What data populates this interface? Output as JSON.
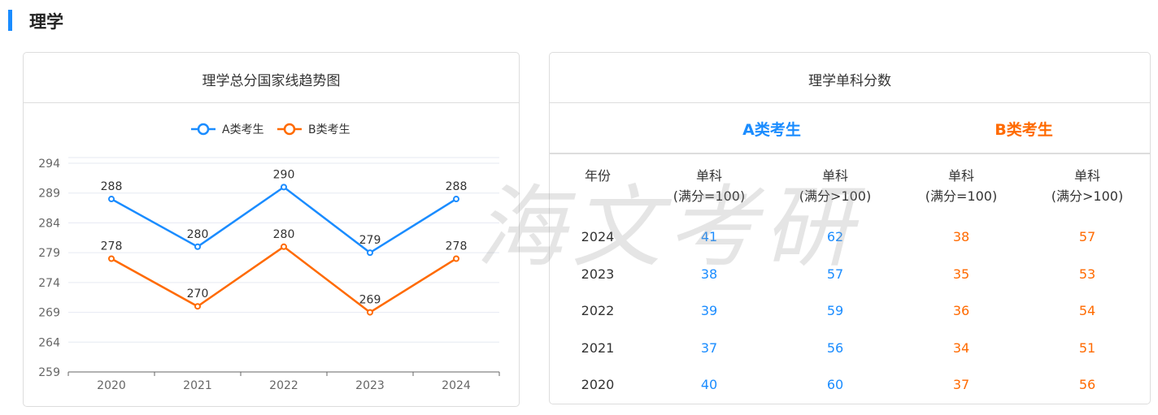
{
  "section_title": "理学",
  "left_card": {
    "title": "理学总分国家线趋势图"
  },
  "chart_data": {
    "type": "line",
    "title": "理学总分国家线趋势图",
    "categories": [
      "2020",
      "2021",
      "2022",
      "2023",
      "2024"
    ],
    "series": [
      {
        "name": "A类考生",
        "color": "#1a8cff",
        "values": [
          288,
          280,
          290,
          279,
          288
        ]
      },
      {
        "name": "B类考生",
        "color": "#ff6a00",
        "values": [
          278,
          270,
          280,
          269,
          278
        ]
      }
    ],
    "ylim": [
      259,
      294
    ],
    "yticks": [
      294,
      289,
      284,
      279,
      274,
      269,
      264,
      259
    ],
    "grid": true,
    "legend": "top-center",
    "data_labels": true
  },
  "right_card": {
    "title": "理学单科分数",
    "group_a": "A类考生",
    "group_b": "B类考生",
    "color_a": "#1a8cff",
    "color_b": "#ff6a00",
    "headers": [
      [
        "年份",
        ""
      ],
      [
        "单科",
        "(满分=100)"
      ],
      [
        "单科",
        "(满分>100)"
      ],
      [
        "单科",
        "(满分=100)"
      ],
      [
        "单科",
        "(满分>100)"
      ]
    ],
    "rows": [
      [
        "2024",
        "41",
        "62",
        "38",
        "57"
      ],
      [
        "2023",
        "38",
        "57",
        "35",
        "53"
      ],
      [
        "2022",
        "39",
        "59",
        "36",
        "54"
      ],
      [
        "2021",
        "37",
        "56",
        "34",
        "51"
      ],
      [
        "2020",
        "40",
        "60",
        "37",
        "56"
      ]
    ]
  },
  "watermark": "海文考研"
}
